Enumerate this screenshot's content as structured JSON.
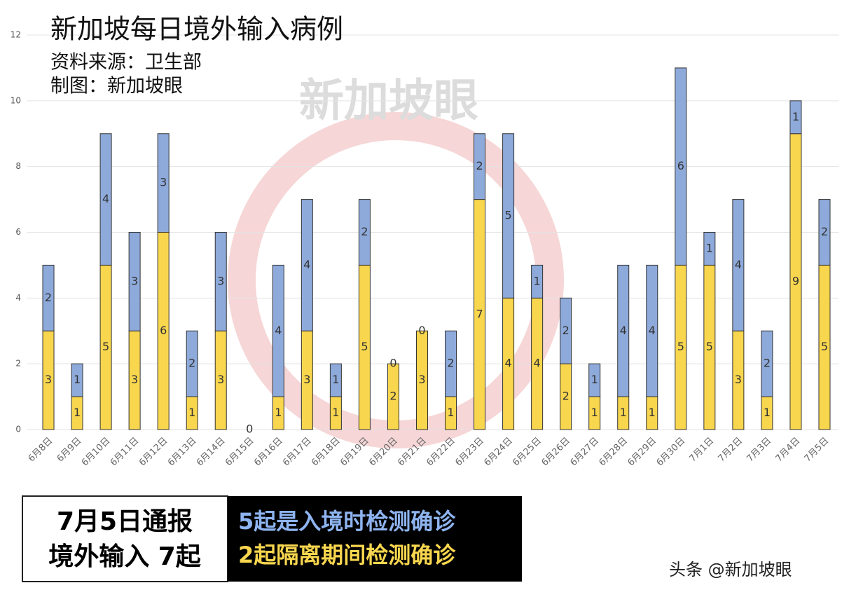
{
  "chart_data": {
    "type": "stacked-bar",
    "title": "新加坡每日境外输入病例",
    "subtitle": [
      "资料来源：卫生部",
      "制图：新加坡眼"
    ],
    "categories": [
      "6月8日",
      "6月9日",
      "6月10日",
      "6月11日",
      "6月12日",
      "6月13日",
      "6月14日",
      "6月15日",
      "6月16日",
      "6月17日",
      "6月18日",
      "6月19日",
      "6月20日",
      "6月21日",
      "6月22日",
      "6月23日",
      "6月24日",
      "6月25日",
      "6月26日",
      "6月27日",
      "6月28日",
      "6月29日",
      "6月30日",
      "7月1日",
      "7月2日",
      "7月3日",
      "7月4日",
      "7月5日"
    ],
    "series": [
      {
        "color": "#f8d64e",
        "values": [
          3,
          1,
          5,
          3,
          6,
          1,
          3,
          0,
          1,
          3,
          1,
          5,
          2,
          3,
          1,
          7,
          4,
          4,
          2,
          1,
          1,
          1,
          5,
          5,
          3,
          1,
          9,
          5
        ]
      },
      {
        "color": "#8eaadb",
        "values": [
          2,
          1,
          4,
          3,
          3,
          2,
          3,
          null,
          4,
          4,
          1,
          2,
          0,
          0,
          2,
          2,
          5,
          1,
          2,
          1,
          4,
          4,
          6,
          1,
          4,
          2,
          1,
          2
        ]
      }
    ],
    "ylim": [
      0,
      12
    ],
    "yticks": [
      0,
      2,
      4,
      6,
      8,
      10,
      12
    ],
    "grid": true,
    "summary": {
      "left": [
        "7月5日通报",
        "境外输入 7起"
      ],
      "right": [
        "5起是入境时检测确诊",
        "2起隔离期间检测确诊"
      ]
    },
    "annotations": [
      "新加坡眼",
      "头条 @新加坡眼"
    ]
  }
}
